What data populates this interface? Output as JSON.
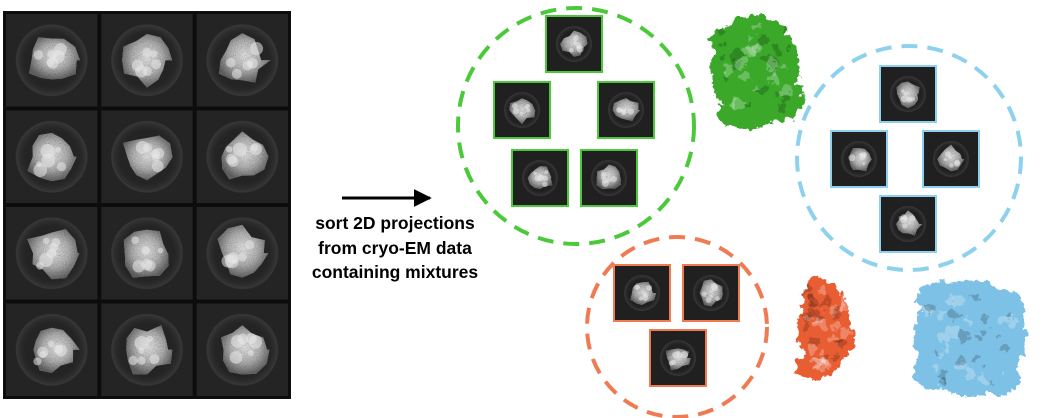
{
  "caption": {
    "line1": "sort 2D projections",
    "line2": "from cryo-EM data",
    "line3": "containing mixtures"
  },
  "colors": {
    "green": "#4cc93b",
    "blue": "#8dd1ef",
    "orange": "#f07a52",
    "green_map": "#3aa82c",
    "blue_map": "#7ec1e6",
    "orange_map": "#e85d33",
    "panel": "#1c1c1c",
    "grid_line": "#101010",
    "arrow": "#000000"
  },
  "input_grid": {
    "rows": 4,
    "cols": 3
  },
  "clusters": [
    {
      "id": "green",
      "class_count": 5
    },
    {
      "id": "blue",
      "class_count": 4
    },
    {
      "id": "orange",
      "class_count": 3
    }
  ],
  "icons": {
    "arrow": "right-arrow-icon",
    "map_green": "density-map-green",
    "map_blue": "density-map-blue",
    "map_orange": "density-map-orange"
  }
}
